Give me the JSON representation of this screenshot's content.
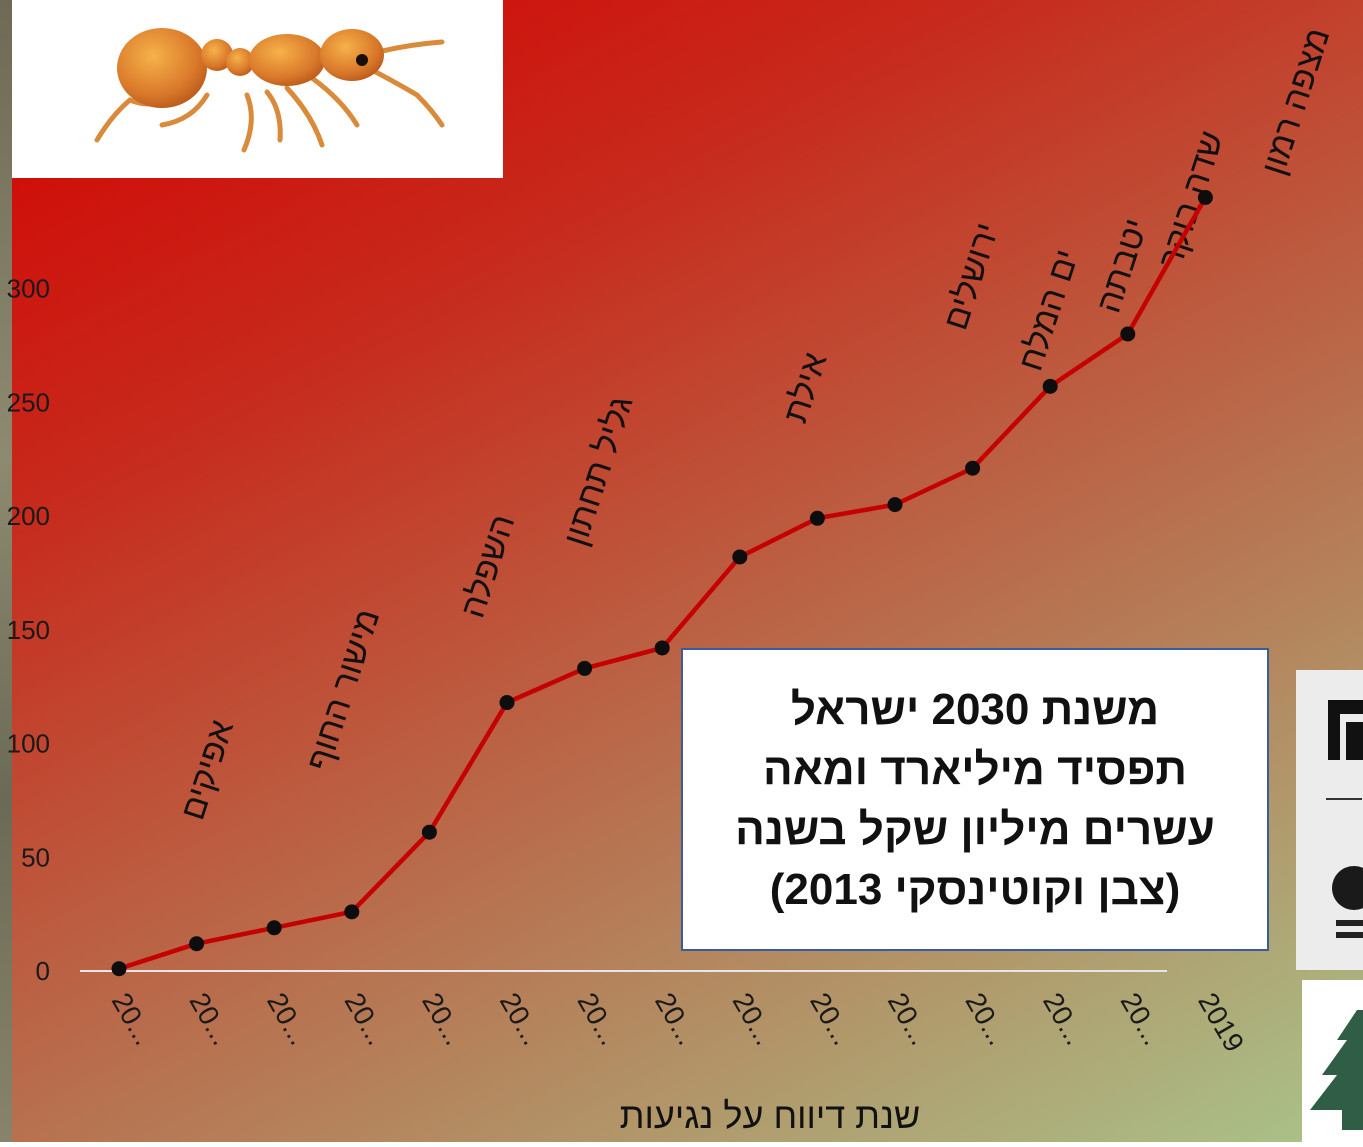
{
  "chart_data": {
    "type": "line",
    "xlabel": "שנת דיווח על נגיעות",
    "x_tick_labels": [
      "20...",
      "20...",
      "20...",
      "20...",
      "20...",
      "20...",
      "20...",
      "20...",
      "20...",
      "20...",
      "20...",
      "20...",
      "20...",
      "20...",
      "2019"
    ],
    "y_ticks": [
      0,
      50,
      100,
      150,
      200,
      250,
      300
    ],
    "y_tick_labels": [
      "0",
      "50",
      "100",
      "150",
      "200",
      "250",
      "300"
    ],
    "ylim": [
      0,
      300
    ],
    "series": [
      {
        "values": [
          1,
          12,
          19,
          26,
          61,
          118,
          133,
          142,
          182,
          199,
          205,
          221,
          257,
          280,
          340
        ]
      }
    ],
    "point_annotations": [
      {
        "index": 1,
        "text": "אפיקים"
      },
      {
        "index": 3,
        "text": "מישור החוף"
      },
      {
        "index": 5,
        "text": "השפלה"
      },
      {
        "index": 6,
        "text": "גליל תחתון"
      },
      {
        "index": 9,
        "text": "אילת"
      },
      {
        "index": 11,
        "text": "ירושלים"
      },
      {
        "index": 12,
        "text": "ים המלח"
      },
      {
        "index": 13,
        "text": "יטבתה"
      },
      {
        "index": 13,
        "text": "שדה בוקר"
      },
      {
        "index": 14,
        "text": "מצפה רמון"
      }
    ],
    "grid": false,
    "colors": {
      "line": "#c40000",
      "marker": "#0d0d0d",
      "baseline": "#e6e6e6"
    }
  },
  "callout": {
    "lines": [
      "משנת 2030 ישראל",
      "תפסיד מיליארד ומאה",
      "עשרים מיליון שקל בשנה",
      "(צבן וקוטינסקי 2013)"
    ]
  },
  "images": {
    "ant_photo": "ant-illustration",
    "logos": [
      "university-logos"
    ]
  },
  "colors": {
    "background_start": "#d40000",
    "background_end": "#a9c48a",
    "callout_border": "#3a5c9a"
  }
}
